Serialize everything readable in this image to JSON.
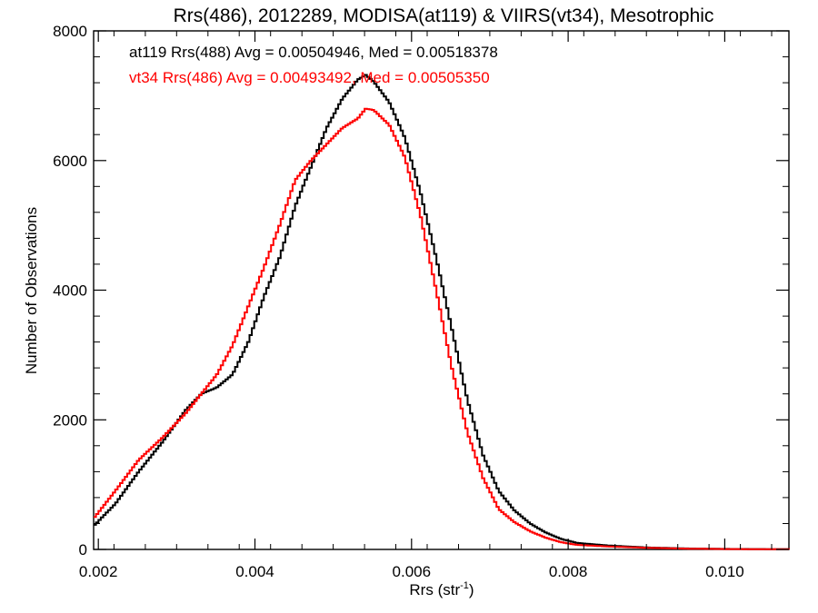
{
  "chart_data": {
    "type": "line",
    "title": "Rrs(486), 2012289, MODISA(at119) & VIIRS(vt34), Mesotrophic",
    "xlabel_main": "Rrs (str",
    "xlabel_sup": "-1",
    "xlabel_end": ")",
    "ylabel": "Number of Observations",
    "xlim": [
      0.00194,
      0.01082
    ],
    "ylim": [
      0,
      8000
    ],
    "xticks": [
      0.002,
      0.004,
      0.006,
      0.008,
      0.01
    ],
    "xtick_labels": [
      "0.002",
      "0.004",
      "0.006",
      "0.008",
      "0.010"
    ],
    "yticks": [
      0,
      2000,
      4000,
      6000,
      8000
    ],
    "ytick_labels": [
      "0",
      "2000",
      "4000",
      "6000",
      "8000"
    ],
    "grid": false,
    "legend_position": "top-left",
    "series": [
      {
        "name": "at119 Rrs(488) Avg = 0.00504946, Med = 0.00518378",
        "color": "#000000",
        "points": [
          [
            0.00194,
            380
          ],
          [
            0.0022,
            700
          ],
          [
            0.0025,
            1200
          ],
          [
            0.0028,
            1650
          ],
          [
            0.0031,
            2150
          ],
          [
            0.0033,
            2400
          ],
          [
            0.0035,
            2500
          ],
          [
            0.0037,
            2700
          ],
          [
            0.0039,
            3200
          ],
          [
            0.0041,
            3900
          ],
          [
            0.0043,
            4500
          ],
          [
            0.0045,
            5300
          ],
          [
            0.0047,
            5900
          ],
          [
            0.0049,
            6500
          ],
          [
            0.0051,
            6950
          ],
          [
            0.0053,
            7250
          ],
          [
            0.0054,
            7320
          ],
          [
            0.0055,
            7220
          ],
          [
            0.0057,
            6900
          ],
          [
            0.0059,
            6350
          ],
          [
            0.0061,
            5500
          ],
          [
            0.0063,
            4500
          ],
          [
            0.0065,
            3400
          ],
          [
            0.0067,
            2300
          ],
          [
            0.0069,
            1450
          ],
          [
            0.0071,
            900
          ],
          [
            0.0073,
            600
          ],
          [
            0.0075,
            400
          ],
          [
            0.0077,
            260
          ],
          [
            0.0079,
            160
          ],
          [
            0.0081,
            100
          ],
          [
            0.0085,
            60
          ],
          [
            0.009,
            30
          ],
          [
            0.0095,
            15
          ],
          [
            0.01,
            8
          ],
          [
            0.01082,
            3
          ]
        ]
      },
      {
        "name": "vt34 Rrs(486) Avg = 0.00493492, Med = 0.00505350",
        "color": "#ff0000",
        "points": [
          [
            0.00194,
            500
          ],
          [
            0.0022,
            900
          ],
          [
            0.0025,
            1380
          ],
          [
            0.0028,
            1720
          ],
          [
            0.0031,
            2100
          ],
          [
            0.0033,
            2400
          ],
          [
            0.0035,
            2700
          ],
          [
            0.0037,
            3150
          ],
          [
            0.0039,
            3750
          ],
          [
            0.0041,
            4350
          ],
          [
            0.0043,
            5000
          ],
          [
            0.0045,
            5700
          ],
          [
            0.0047,
            6000
          ],
          [
            0.0049,
            6250
          ],
          [
            0.0051,
            6500
          ],
          [
            0.0053,
            6650
          ],
          [
            0.0054,
            6800
          ],
          [
            0.0055,
            6780
          ],
          [
            0.0057,
            6550
          ],
          [
            0.0059,
            6050
          ],
          [
            0.0061,
            5150
          ],
          [
            0.0063,
            4000
          ],
          [
            0.0065,
            2800
          ],
          [
            0.0067,
            1800
          ],
          [
            0.0069,
            1100
          ],
          [
            0.0071,
            620
          ],
          [
            0.0073,
            420
          ],
          [
            0.0075,
            280
          ],
          [
            0.0077,
            180
          ],
          [
            0.0079,
            110
          ],
          [
            0.0081,
            70
          ],
          [
            0.0085,
            45
          ],
          [
            0.009,
            25
          ],
          [
            0.0095,
            12
          ],
          [
            0.01,
            6
          ],
          [
            0.01082,
            2
          ]
        ]
      }
    ]
  }
}
